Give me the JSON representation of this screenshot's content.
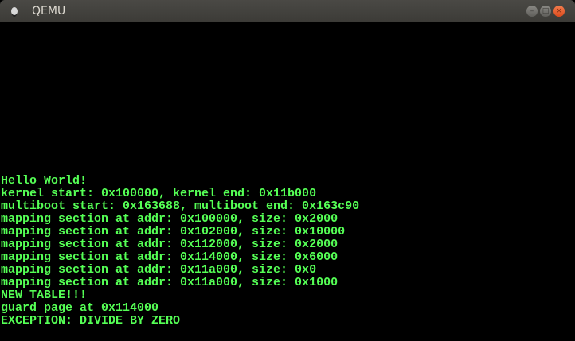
{
  "window": {
    "title": "QEMU",
    "icon": "qemu-app-icon",
    "buttons": [
      "minimize",
      "maximize",
      "close"
    ]
  },
  "colors": {
    "text": "#55ff55",
    "background": "#000000",
    "close_button": "#e95420"
  },
  "console": {
    "lines": [
      "Hello World!",
      "kernel start: 0x100000, kernel end: 0x11b000",
      "multiboot start: 0x163688, multiboot end: 0x163c90",
      "mapping section at addr: 0x100000, size: 0x2000",
      "mapping section at addr: 0x102000, size: 0x10000",
      "mapping section at addr: 0x112000, size: 0x2000",
      "mapping section at addr: 0x114000, size: 0x6000",
      "mapping section at addr: 0x11a000, size: 0x0",
      "mapping section at addr: 0x11a000, size: 0x1000",
      "NEW TABLE!!!",
      "guard page at 0x114000",
      "EXCEPTION: DIVIDE BY ZERO"
    ]
  }
}
